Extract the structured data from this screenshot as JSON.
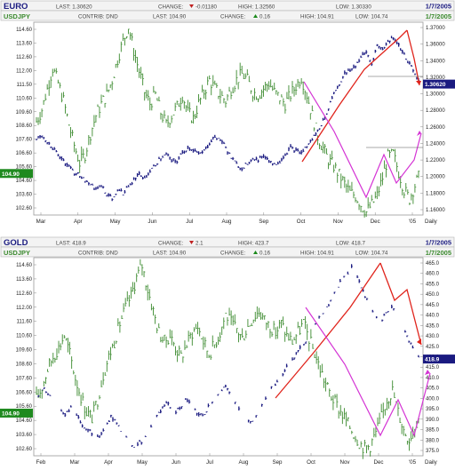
{
  "panels": [
    {
      "symbol": "EURO",
      "last_label": "LAST:",
      "last": "1.30620",
      "change_label": "CHANGE:",
      "change_dir": "down",
      "change": "-0.01180",
      "high_label": "HIGH:",
      "high": "1.32560",
      "low_label": "LOW:",
      "low": "1.30330",
      "date": "1/7/2005",
      "compare_symbol": "USDJPY",
      "contrib_label": "CONTRIB:",
      "contrib": "DND",
      "c_last_label": "LAST:",
      "c_last": "104.90",
      "c_change_label": "CHANGE:",
      "c_change_dir": "up",
      "c_change": "0.16",
      "c_high_label": "HIGH:",
      "c_high": "104.91",
      "c_low_label": "LOW:",
      "c_low": "104.74",
      "c_date": "1/7/2005",
      "left_price_tag": "104.90",
      "right_price_tag": "1.30620"
    },
    {
      "symbol": "GOLD",
      "last_label": "LAST:",
      "last": "418.9",
      "change_label": "CHANGE:",
      "change_dir": "down",
      "change": "2.1",
      "high_label": "HIGH:",
      "high": "423.7",
      "low_label": "LOW:",
      "low": "418.7",
      "date": "1/7/2005",
      "compare_symbol": "USDJPY",
      "contrib_label": "CONTRIB:",
      "contrib": "DND",
      "c_last_label": "LAST:",
      "c_last": "104.90",
      "c_change_label": "CHANGE:",
      "c_change_dir": "up",
      "c_change": "0.16",
      "c_high_label": "HIGH:",
      "c_high": "104.91",
      "c_low_label": "LOW:",
      "c_low": "104.74",
      "c_date": "1/7/2005",
      "left_price_tag": "104.90",
      "right_price_tag": "418.9"
    }
  ],
  "chart_data": [
    {
      "type": "line",
      "x_ticks": [
        "Mar",
        "Apr",
        "May",
        "Jun",
        "Jul",
        "Aug",
        "Sep",
        "Oct",
        "Nov",
        "Dec",
        "'05",
        "Daily"
      ],
      "left_axis": {
        "series": "USDJPY",
        "ticks": [
          "114.60",
          "113.60",
          "112.60",
          "112.00",
          "111.50",
          "110.60",
          "109.60",
          "108.60",
          "107.60",
          "106.60",
          "105.60",
          "104.60",
          "103.60",
          "102.60"
        ],
        "ylim": [
          102.1,
          115.1
        ]
      },
      "right_axis": {
        "series": "EURO",
        "ticks": [
          "1.37000",
          "1.36000",
          "1.34000",
          "1.32000",
          "1.30000",
          "1.28000",
          "1.26000",
          "1.24000",
          "1.22000",
          "1.20000",
          "1.18000",
          "1.16000"
        ],
        "ylim": [
          1.15,
          1.38
        ]
      },
      "series": [
        {
          "name": "USDJPY",
          "axis": "left",
          "color": "#3b8a2e",
          "values": [
            108.4,
            109.2,
            110.6,
            112.0,
            111.0,
            109.8,
            108.2,
            106.8,
            105.6,
            106.2,
            107.6,
            108.8,
            109.6,
            110.2,
            111.2,
            112.6,
            113.8,
            114.8,
            113.2,
            111.8,
            110.4,
            109.6,
            110.2,
            109.0,
            108.2,
            108.8,
            109.4,
            110.2,
            109.0,
            108.6,
            109.6,
            110.4,
            111.2,
            110.6,
            110.2,
            109.8,
            110.6,
            111.2,
            111.6,
            111.2,
            110.4,
            110.2,
            110.6,
            111.0,
            110.4,
            110.0,
            109.6,
            110.2,
            110.8,
            111.4,
            110.2,
            108.8,
            107.4,
            106.6,
            105.8,
            105.4,
            104.8,
            104.2,
            103.6,
            103.4,
            102.8,
            102.3,
            102.8,
            103.4,
            104.6,
            106.0,
            106.2,
            105.0,
            103.8,
            103.2,
            104.1,
            104.9
          ]
        },
        {
          "name": "EURO",
          "axis": "right",
          "color": "#1a1a80",
          "values": [
            1.24,
            1.245,
            1.238,
            1.23,
            1.222,
            1.215,
            1.208,
            1.2,
            1.198,
            1.19,
            1.188,
            1.18,
            1.185,
            1.175,
            1.17,
            1.18,
            1.176,
            1.184,
            1.192,
            1.2,
            1.194,
            1.202,
            1.21,
            1.218,
            1.222,
            1.216,
            1.214,
            1.224,
            1.23,
            1.228,
            1.222,
            1.226,
            1.236,
            1.244,
            1.24,
            1.23,
            1.218,
            1.21,
            1.205,
            1.212,
            1.218,
            1.216,
            1.222,
            1.215,
            1.21,
            1.214,
            1.222,
            1.23,
            1.226,
            1.224,
            1.232,
            1.24,
            1.25,
            1.262,
            1.278,
            1.296,
            1.306,
            1.318,
            1.322,
            1.328,
            1.338,
            1.344,
            1.33,
            1.352,
            1.348,
            1.356,
            1.362,
            1.352,
            1.34,
            1.33,
            1.318,
            1.3062
          ]
        }
      ]
    },
    {
      "type": "line",
      "x_ticks": [
        "Feb",
        "Mar",
        "Apr",
        "May",
        "Jun",
        "Jul",
        "Aug",
        "Sep",
        "Oct",
        "Nov",
        "Dec",
        "'05",
        "Daily"
      ],
      "left_axis": {
        "series": "USDJPY",
        "ticks": [
          "114.60",
          "113.60",
          "112.60",
          "112.00",
          "111.60",
          "110.60",
          "109.60",
          "108.60",
          "107.60",
          "106.60",
          "105.60",
          "104.60",
          "103.60",
          "102.60"
        ],
        "ylim": [
          102.1,
          115.1
        ]
      },
      "right_axis": {
        "series": "GOLD",
        "ticks": [
          "465.0",
          "460.0",
          "455.0",
          "450.0",
          "445.0",
          "440.0",
          "435.0",
          "430.0",
          "425.0",
          "420.0",
          "415.0",
          "410.0",
          "405.0",
          "400.0",
          "395.0",
          "390.0",
          "385.0",
          "380.0",
          "375.0"
        ],
        "ylim": [
          373.0,
          467.0
        ]
      },
      "series": [
        {
          "name": "USDJPY",
          "axis": "left",
          "color": "#3b8a2e",
          "values": [
            105.8,
            106.6,
            107.8,
            108.6,
            109.2,
            110.0,
            108.8,
            107.2,
            106.0,
            105.0,
            104.6,
            105.8,
            107.4,
            108.6,
            109.6,
            110.8,
            111.8,
            112.6,
            113.8,
            114.6,
            113.0,
            111.6,
            110.2,
            109.6,
            110.0,
            109.2,
            108.6,
            109.4,
            110.2,
            110.6,
            109.6,
            108.8,
            109.4,
            110.2,
            111.4,
            110.8,
            110.4,
            109.8,
            110.6,
            111.2,
            111.6,
            111.0,
            110.6,
            110.2,
            110.8,
            110.0,
            109.6,
            110.2,
            110.8,
            109.8,
            108.8,
            107.8,
            106.8,
            106.0,
            105.4,
            104.8,
            104.2,
            103.6,
            103.0,
            102.6,
            102.8,
            103.6,
            104.6,
            105.8,
            106.4,
            105.0,
            103.8,
            103.2,
            104.1,
            104.9
          ]
        },
        {
          "name": "GOLD",
          "axis": "right",
          "color": "#1a1a80",
          "values": [
            400.0,
            405.0,
            403.0,
            398.0,
            395.0,
            392.0,
            396.0,
            392.0,
            388.0,
            385.0,
            383.0,
            382.0,
            386.0,
            392.0,
            388.0,
            384.0,
            380.0,
            378.0,
            379.0,
            382.0,
            386.0,
            392.0,
            396.0,
            398.0,
            394.0,
            395.0,
            400.0,
            397.0,
            393.0,
            392.0,
            396.0,
            400.0,
            404.0,
            406.0,
            402.0,
            397.0,
            392.0,
            389.0,
            390.0,
            395.0,
            400.0,
            405.0,
            408.0,
            412.0,
            416.0,
            420.0,
            424.0,
            427.0,
            432.0,
            437.0,
            441.0,
            444.0,
            450.0,
            455.0,
            459.0,
            462.0,
            458.0,
            451.0,
            445.0,
            440.0,
            436.0,
            441.0,
            444.0,
            440.0,
            433.0,
            428.0,
            423.0,
            418.9
          ]
        }
      ]
    }
  ]
}
